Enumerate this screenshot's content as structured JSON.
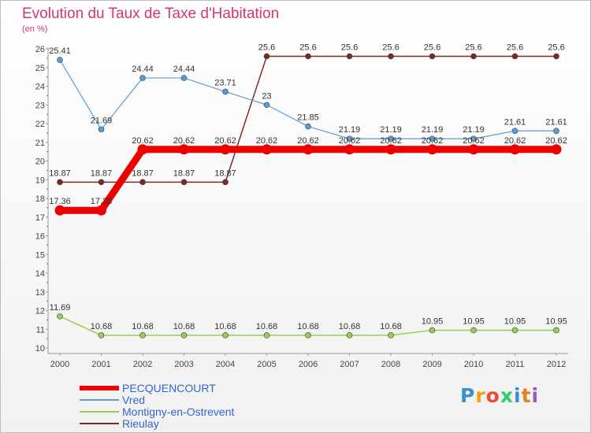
{
  "chart_data": {
    "type": "line",
    "title": "Evolution du Taux de Taxe d'Habitation",
    "ylabel": "(en %)",
    "xlabel": "",
    "x": [
      "2000",
      "2001",
      "2002",
      "2003",
      "2004",
      "2005",
      "2006",
      "2007",
      "2008",
      "2009",
      "2010",
      "2011",
      "2012"
    ],
    "ylim": [
      10,
      26
    ],
    "yticks": [
      "10",
      "11",
      "12",
      "13",
      "14",
      "15",
      "16",
      "17",
      "18",
      "19",
      "20",
      "21",
      "22",
      "23",
      "24",
      "25",
      "26"
    ],
    "series": [
      {
        "name": "PECQUENCOURT",
        "color": "#ee0000",
        "values": [
          17.36,
          17.36,
          20.62,
          20.62,
          20.62,
          20.62,
          20.62,
          20.62,
          20.62,
          20.62,
          20.62,
          20.62,
          20.62
        ],
        "labels": [
          "17.36",
          "17.36",
          "20.62",
          "20.62",
          "20.62",
          "20.62",
          "20.62",
          "20.62",
          "20.62",
          "20.62",
          "20.62",
          "20.62",
          "20.62"
        ]
      },
      {
        "name": "Vred",
        "color": "#5b9bd5",
        "values": [
          25.41,
          21.69,
          24.44,
          24.44,
          23.71,
          23,
          21.85,
          21.19,
          21.19,
          21.19,
          21.19,
          21.61,
          21.61
        ],
        "labels": [
          "25.41",
          "21.69",
          "24.44",
          "24.44",
          "23.71",
          "23",
          "21.85",
          "21.19",
          "21.19",
          "21.19",
          "21.19",
          "21.61",
          "21.61"
        ]
      },
      {
        "name": "Montigny-en-Ostrevent",
        "color": "#99cc55",
        "values": [
          11.69,
          10.68,
          10.68,
          10.68,
          10.68,
          10.68,
          10.68,
          10.68,
          10.68,
          10.95,
          10.95,
          10.95,
          10.95
        ],
        "labels": [
          "11.69",
          "10.68",
          "10.68",
          "10.68",
          "10.68",
          "10.68",
          "10.68",
          "10.68",
          "10.68",
          "10.95",
          "10.95",
          "10.95",
          "10.95"
        ]
      },
      {
        "name": "Rieulay",
        "color": "#7b2a2a",
        "values": [
          18.87,
          18.87,
          18.87,
          18.87,
          18.87,
          25.6,
          25.6,
          25.6,
          25.6,
          25.6,
          25.6,
          25.6,
          25.6
        ],
        "labels": [
          "18.87",
          "18.87",
          "18.87",
          "18.87",
          "18.87",
          "25.6",
          "25.6",
          "25.6",
          "25.6",
          "25.6",
          "25.6",
          "25.6",
          "25.6"
        ]
      }
    ]
  },
  "legend": {
    "items": [
      {
        "label": "PECQUENCOURT"
      },
      {
        "label": "Vred"
      },
      {
        "label": "Montigny-en-Ostrevent"
      },
      {
        "label": "Rieulay"
      }
    ]
  },
  "logo": {
    "text": "Proxiti",
    "letters": [
      {
        "ch": "P",
        "color": "#3b8fd1"
      },
      {
        "ch": "r",
        "color": "#f39c12"
      },
      {
        "ch": "o",
        "color": "#e74c3c"
      },
      {
        "ch": "x",
        "color": "#2ecc71"
      },
      {
        "ch": "i",
        "color": "#3b8fd1"
      },
      {
        "ch": "t",
        "color": "#e67e22"
      },
      {
        "ch": "i",
        "color": "#9b59b6"
      }
    ]
  }
}
